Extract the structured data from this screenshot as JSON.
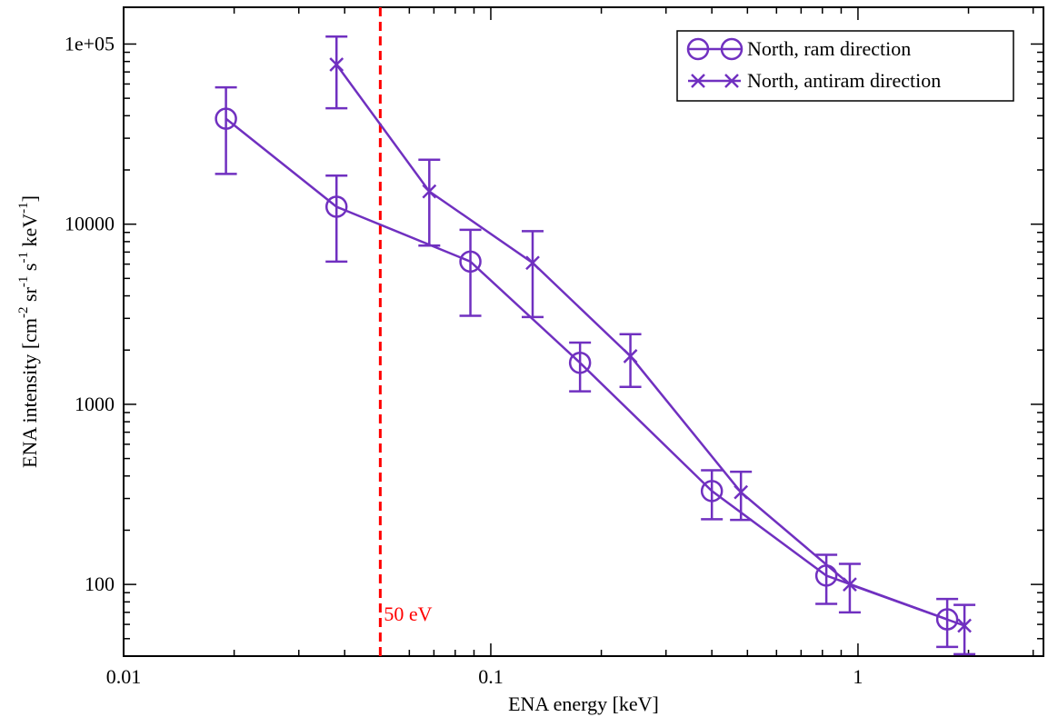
{
  "chart_data": {
    "type": "line",
    "xlabel": "ENA energy [keV]",
    "ylabel": "ENA intensity [cm-2 sr-1 s-1 keV-1]",
    "x_scale": "log",
    "y_scale": "log",
    "xlim": [
      0.01,
      3.2
    ],
    "ylim": [
      40,
      160000
    ],
    "x_ticks": [
      {
        "value": 0.01,
        "label": "0.01"
      },
      {
        "value": 0.1,
        "label": "0.1"
      },
      {
        "value": 1,
        "label": "1"
      }
    ],
    "y_ticks": [
      {
        "value": 100,
        "label": "100"
      },
      {
        "value": 1000,
        "label": "1000"
      },
      {
        "value": 10000,
        "label": "10000"
      },
      {
        "value": 100000,
        "label": "1e+05"
      }
    ],
    "grid": false,
    "legend_position": "top-right",
    "series": [
      {
        "name": "North, ram direction",
        "marker": "circle",
        "color": "#7030c0",
        "points": [
          {
            "x": 0.019,
            "y": 38500,
            "lo": 19000,
            "hi": 57500
          },
          {
            "x": 0.038,
            "y": 12500,
            "lo": 6200,
            "hi": 18600
          },
          {
            "x": 0.088,
            "y": 6200,
            "lo": 3100,
            "hi": 9300
          },
          {
            "x": 0.175,
            "y": 1700,
            "lo": 1180,
            "hi": 2200
          },
          {
            "x": 0.4,
            "y": 330,
            "lo": 230,
            "hi": 430
          },
          {
            "x": 0.82,
            "y": 112,
            "lo": 78,
            "hi": 146
          },
          {
            "x": 1.75,
            "y": 64,
            "lo": 45,
            "hi": 83
          }
        ]
      },
      {
        "name": "North, antiram direction",
        "marker": "x",
        "color": "#7030c0",
        "points": [
          {
            "x": 0.038,
            "y": 77000,
            "lo": 44000,
            "hi": 110000
          },
          {
            "x": 0.068,
            "y": 15200,
            "lo": 7600,
            "hi": 22800
          },
          {
            "x": 0.13,
            "y": 6100,
            "lo": 3050,
            "hi": 9150
          },
          {
            "x": 0.24,
            "y": 1850,
            "lo": 1250,
            "hi": 2450
          },
          {
            "x": 0.48,
            "y": 325,
            "lo": 228,
            "hi": 422
          },
          {
            "x": 0.95,
            "y": 100,
            "lo": 70,
            "hi": 130
          },
          {
            "x": 1.95,
            "y": 59,
            "lo": 41,
            "hi": 77
          }
        ]
      }
    ],
    "annotations": [
      {
        "type": "vline",
        "x": 0.05,
        "label": "50 eV",
        "color": "#ff0000",
        "style": "dashed"
      }
    ]
  }
}
